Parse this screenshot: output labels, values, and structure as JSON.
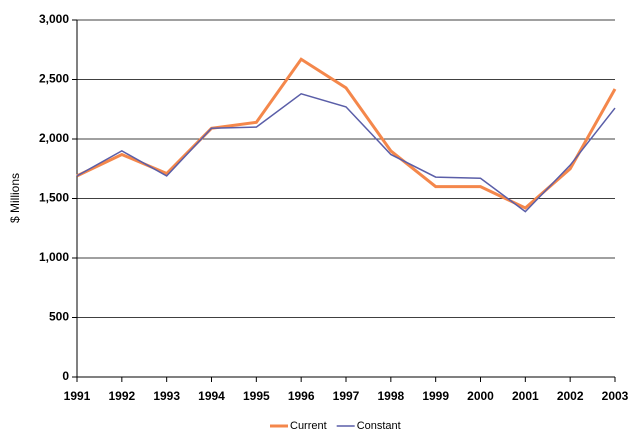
{
  "chart_data": {
    "type": "line",
    "y_label": "$ Millions",
    "categories": [
      "1991",
      "1992",
      "1993",
      "1994",
      "1995",
      "1996",
      "1997",
      "1998",
      "1999",
      "2000",
      "2001",
      "2002",
      "2003"
    ],
    "series": [
      {
        "name": "Current",
        "color": "#f4874b",
        "values": [
          1690,
          1870,
          1710,
          2090,
          2140,
          2670,
          2430,
          1900,
          1600,
          1600,
          1420,
          1750,
          2420
        ]
      },
      {
        "name": "Constant",
        "color": "#5a5ea8",
        "values": [
          1690,
          1900,
          1690,
          2090,
          2100,
          2380,
          2270,
          1870,
          1680,
          1670,
          1390,
          1780,
          2260
        ]
      }
    ],
    "ylim": [
      0,
      3000
    ],
    "yticks": [
      0,
      500,
      {
        "value": 1000,
        "label": "1,000"
      },
      {
        "value": 1500,
        "label": "1,500"
      },
      {
        "value": 2000,
        "label": "2,000"
      },
      {
        "value": 2500,
        "label": "2,500"
      },
      {
        "value": 3000,
        "label": "3,000"
      }
    ],
    "grid": true,
    "legend": "bottom"
  }
}
